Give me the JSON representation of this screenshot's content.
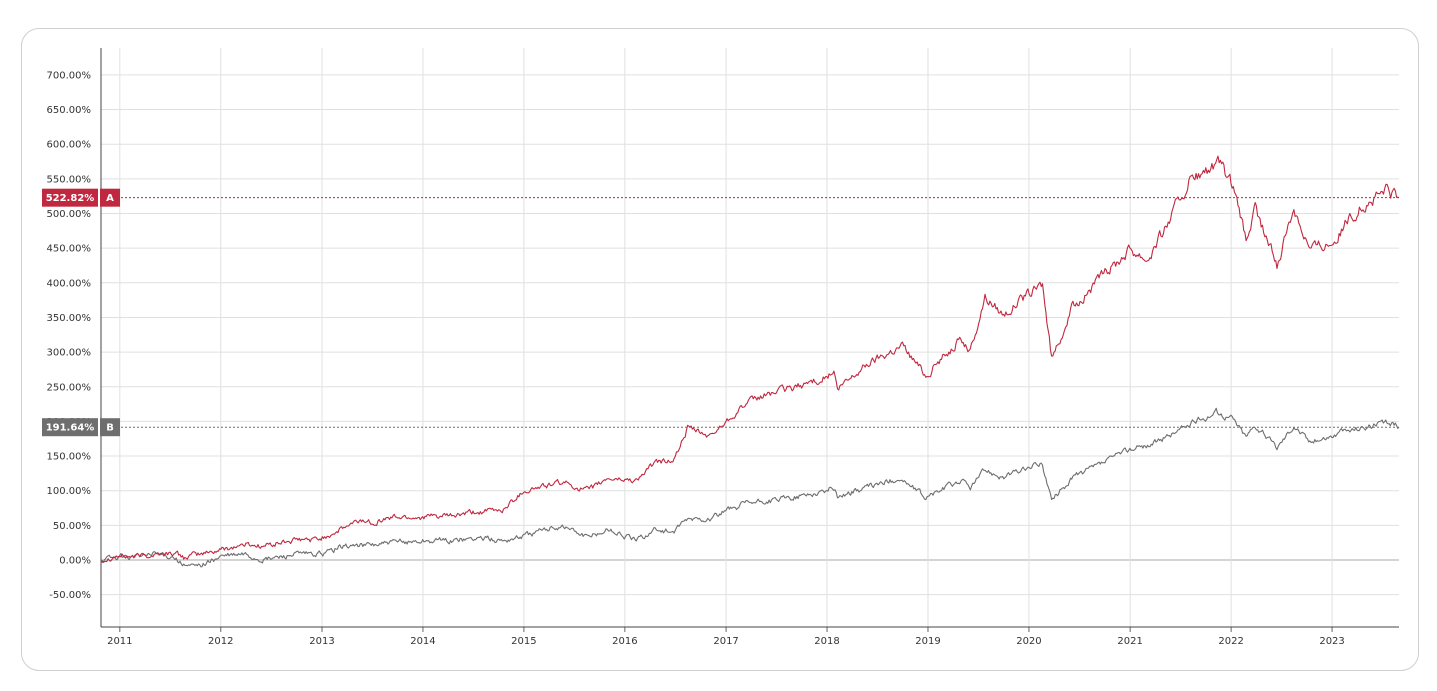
{
  "chart_data": {
    "type": "line",
    "title": "",
    "xlabel": "",
    "ylabel": "",
    "ylim": [
      -95,
      740
    ],
    "xlim": [
      "2010-10-25",
      "2023-08-31"
    ],
    "grid": true,
    "y_ticks": [
      "-50.00%",
      "0.00%",
      "50.00%",
      "100.00%",
      "150.00%",
      "200.00%",
      "250.00%",
      "300.00%",
      "350.00%",
      "400.00%",
      "450.00%",
      "500.00%",
      "550.00%",
      "600.00%",
      "650.00%",
      "700.00%"
    ],
    "x_ticks": [
      "2011",
      "2012",
      "2013",
      "2014",
      "2015",
      "2016",
      "2017",
      "2018",
      "2019",
      "2020",
      "2021",
      "2022",
      "2023"
    ],
    "series": [
      {
        "marker_label": "A",
        "last_value_label": "522.82%",
        "last_value": 522.82,
        "color": "#c0283f",
        "points": [
          [
            "2010-10-25",
            0
          ],
          [
            "2010-12-15",
            6
          ],
          [
            "2011-03-01",
            5
          ],
          [
            "2011-05-01",
            8
          ],
          [
            "2011-07-15",
            10
          ],
          [
            "2011-08-20",
            4
          ],
          [
            "2011-10-15",
            8
          ],
          [
            "2012-01-01",
            15
          ],
          [
            "2012-04-01",
            23
          ],
          [
            "2012-06-01",
            20
          ],
          [
            "2012-09-01",
            27
          ],
          [
            "2012-12-20",
            30
          ],
          [
            "2013-02-15",
            40
          ],
          [
            "2013-05-20",
            57
          ],
          [
            "2013-07-01",
            55
          ],
          [
            "2013-09-15",
            62
          ],
          [
            "2013-12-31",
            62
          ],
          [
            "2014-04-15",
            63
          ],
          [
            "2014-07-01",
            68
          ],
          [
            "2014-10-15",
            72
          ],
          [
            "2014-12-31",
            100
          ],
          [
            "2015-05-20",
            112
          ],
          [
            "2015-08-25",
            100
          ],
          [
            "2015-11-01",
            118
          ],
          [
            "2016-02-10",
            115
          ],
          [
            "2016-04-20",
            140
          ],
          [
            "2016-06-27",
            145
          ],
          [
            "2016-08-15",
            190
          ],
          [
            "2016-11-04",
            178
          ],
          [
            "2016-12-31",
            200
          ],
          [
            "2017-03-01",
            222
          ],
          [
            "2017-06-01",
            240
          ],
          [
            "2017-09-01",
            248
          ],
          [
            "2017-12-31",
            265
          ],
          [
            "2018-01-26",
            270
          ],
          [
            "2018-02-08",
            245
          ],
          [
            "2018-06-01",
            285
          ],
          [
            "2018-10-01",
            310
          ],
          [
            "2018-12-24",
            267
          ],
          [
            "2019-04-30",
            320
          ],
          [
            "2019-06-03",
            300
          ],
          [
            "2019-07-26",
            380
          ],
          [
            "2019-10-01",
            355
          ],
          [
            "2020-02-19",
            398
          ],
          [
            "2020-03-23",
            290
          ],
          [
            "2020-06-08",
            365
          ],
          [
            "2020-09-02",
            400
          ],
          [
            "2020-12-31",
            450
          ],
          [
            "2021-03-05",
            435
          ],
          [
            "2021-05-01",
            475
          ],
          [
            "2021-08-01",
            545
          ],
          [
            "2021-11-19",
            570
          ],
          [
            "2022-01-05",
            540
          ],
          [
            "2022-02-24",
            460
          ],
          [
            "2022-03-29",
            505
          ],
          [
            "2022-06-16",
            425
          ],
          [
            "2022-08-16",
            510
          ],
          [
            "2022-10-13",
            450
          ],
          [
            "2023-01-05",
            460
          ],
          [
            "2023-04-01",
            505
          ],
          [
            "2023-06-01",
            520
          ],
          [
            "2023-07-19",
            535
          ],
          [
            "2023-08-31",
            522.82
          ]
        ]
      },
      {
        "marker_label": "B",
        "last_value_label": "191.64%",
        "last_value": 191.64,
        "color": "#6e6e6e",
        "points": [
          [
            "2010-10-25",
            0
          ],
          [
            "2010-12-15",
            4
          ],
          [
            "2011-03-01",
            5
          ],
          [
            "2011-05-01",
            8
          ],
          [
            "2011-07-15",
            6
          ],
          [
            "2011-08-20",
            -8
          ],
          [
            "2011-10-04",
            -10
          ],
          [
            "2012-01-01",
            5
          ],
          [
            "2012-03-26",
            8
          ],
          [
            "2012-06-04",
            0
          ],
          [
            "2012-09-14",
            8
          ],
          [
            "2012-12-31",
            8
          ],
          [
            "2013-03-15",
            20
          ],
          [
            "2013-06-24",
            22
          ],
          [
            "2013-12-31",
            28
          ],
          [
            "2014-04-15",
            28
          ],
          [
            "2014-07-24",
            32
          ],
          [
            "2014-10-15",
            28
          ],
          [
            "2014-12-31",
            35
          ],
          [
            "2015-05-20",
            50
          ],
          [
            "2015-08-25",
            32
          ],
          [
            "2015-11-03",
            45
          ],
          [
            "2016-02-11",
            28
          ],
          [
            "2016-04-20",
            45
          ],
          [
            "2016-06-27",
            40
          ],
          [
            "2016-08-15",
            58
          ],
          [
            "2016-11-04",
            60
          ],
          [
            "2016-12-31",
            70
          ],
          [
            "2017-03-01",
            80
          ],
          [
            "2017-06-01",
            85
          ],
          [
            "2017-09-01",
            90
          ],
          [
            "2017-12-31",
            100
          ],
          [
            "2018-01-26",
            105
          ],
          [
            "2018-02-08",
            92
          ],
          [
            "2018-09-20",
            118
          ],
          [
            "2018-12-24",
            90
          ],
          [
            "2019-04-30",
            115
          ],
          [
            "2019-06-03",
            105
          ],
          [
            "2019-07-26",
            130
          ],
          [
            "2019-10-02",
            120
          ],
          [
            "2020-02-19",
            140
          ],
          [
            "2020-03-23",
            85
          ],
          [
            "2020-06-08",
            120
          ],
          [
            "2020-09-02",
            135
          ],
          [
            "2020-12-31",
            160
          ],
          [
            "2021-03-05",
            165
          ],
          [
            "2021-05-01",
            175
          ],
          [
            "2021-08-01",
            195
          ],
          [
            "2021-11-08",
            213
          ],
          [
            "2022-01-05",
            205
          ],
          [
            "2022-02-24",
            178
          ],
          [
            "2022-03-29",
            195
          ],
          [
            "2022-06-16",
            162
          ],
          [
            "2022-08-16",
            195
          ],
          [
            "2022-10-13",
            170
          ],
          [
            "2023-01-05",
            180
          ],
          [
            "2023-04-01",
            190
          ],
          [
            "2023-06-01",
            195
          ],
          [
            "2023-07-31",
            198
          ],
          [
            "2023-08-31",
            191.64
          ]
        ]
      }
    ]
  }
}
